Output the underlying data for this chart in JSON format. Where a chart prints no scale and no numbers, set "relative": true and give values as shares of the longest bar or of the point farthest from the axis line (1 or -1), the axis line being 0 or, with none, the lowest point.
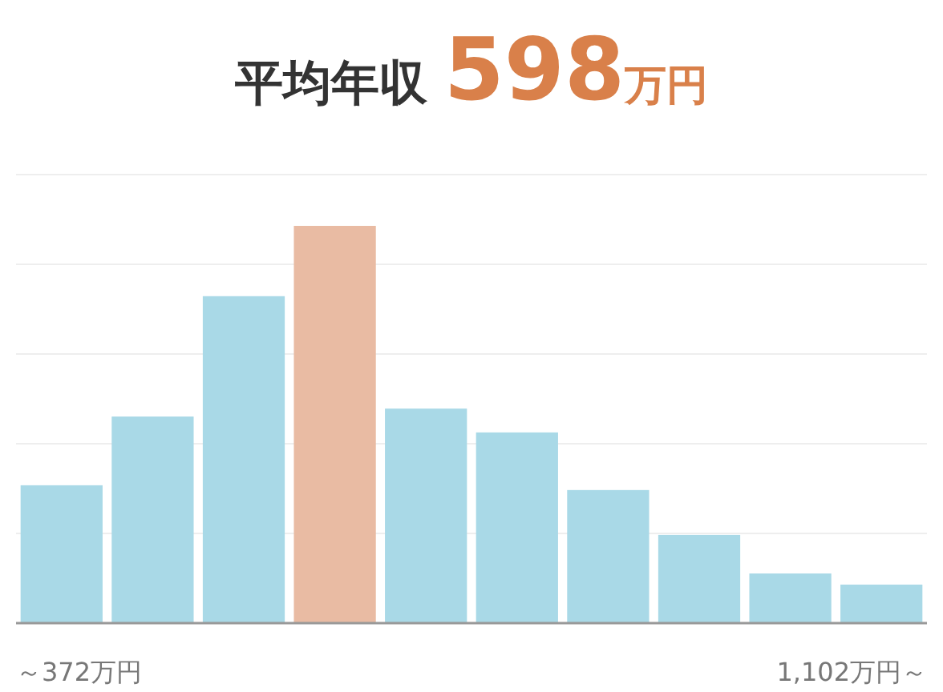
{
  "chart_data": {
    "type": "bar",
    "title": "平均年収",
    "subtitle": "598万円",
    "categories": [
      "～372万円",
      null,
      null,
      null,
      null,
      null,
      null,
      null,
      null,
      "1,102万円～"
    ],
    "values": [
      0.347,
      0.52,
      0.823,
      1,
      0.54,
      0.48,
      0.335,
      0.222,
      0.125,
      0.097
    ],
    "colors": [
      "#a9d9e7",
      "#a9d9e7",
      "#a9d9e7",
      "#e9bba3",
      "#a9d9e7",
      "#a9d9e7",
      "#a9d9e7",
      "#a9d9e7",
      "#a9d9e7",
      "#a9d9e7"
    ],
    "relative": true,
    "grid": "y"
  }
}
